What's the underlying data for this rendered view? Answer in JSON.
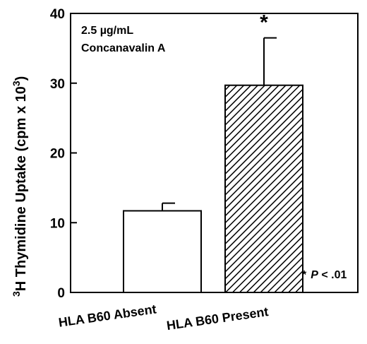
{
  "chart_data": {
    "type": "bar",
    "categories": [
      "HLA B60 Absent",
      "HLA B60 Present"
    ],
    "values": [
      11.7,
      29.7
    ],
    "errors": [
      1.1,
      6.8
    ],
    "fills": [
      "white",
      "hatched"
    ],
    "significance": [
      "",
      "*"
    ],
    "ylim": [
      0,
      40
    ],
    "yticks": [
      0,
      10,
      20,
      30,
      40
    ],
    "ylabel": {
      "superscript_pre": "3",
      "text": "H Thymidine Uptake (cpm x 10",
      "superscript_post": "3",
      "close": ")"
    },
    "annotation": {
      "line1": "2.5 µg/mL",
      "line2": "Concanavalin A"
    },
    "footnote": {
      "star": "*",
      "p": "P",
      "rest": " < .01"
    },
    "grid": false,
    "legend": "none"
  }
}
